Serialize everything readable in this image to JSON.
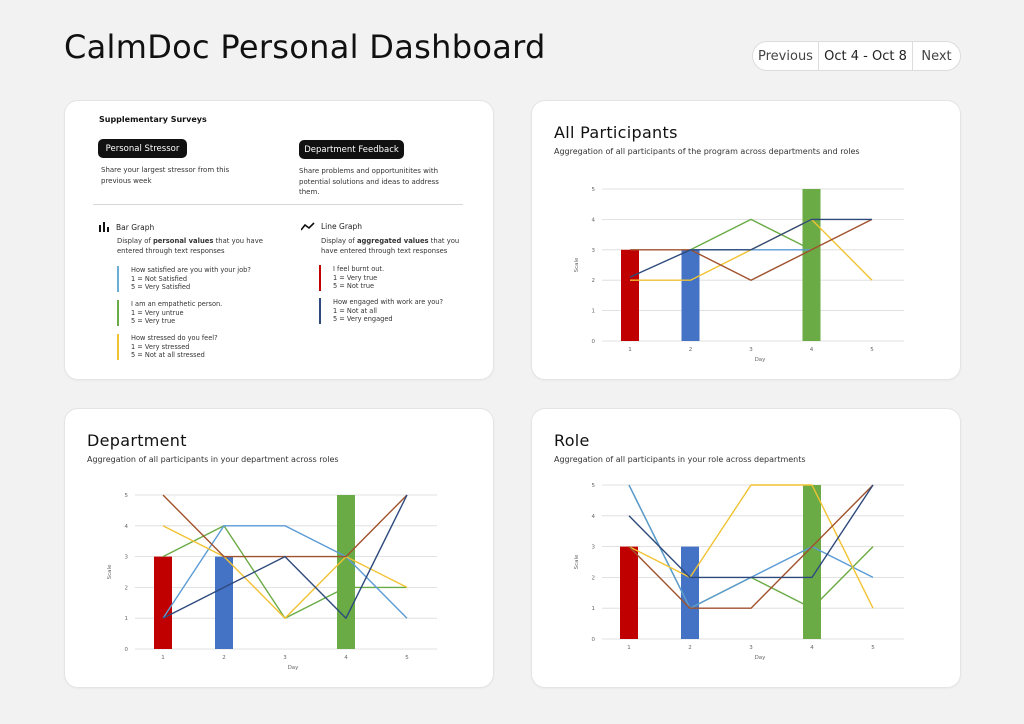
{
  "header": {
    "title": "CalmDoc Personal Dashboard",
    "pager": {
      "prev": "Previous",
      "range": "Oct 4 - Oct 8",
      "next": "Next"
    }
  },
  "surveys": {
    "heading": "Supplementary Surveys",
    "stressor": {
      "label": "Personal Stressor",
      "desc": "Share your largest stressor from this previous week"
    },
    "feedback": {
      "label": "Department Feedback",
      "desc": "Share problems and opportunitites with potential solutions and ideas to address them."
    },
    "bar_legend": {
      "title": "Bar Graph",
      "desc_pre": "Display of ",
      "desc_bold": "personal values",
      "desc_post": " that you have entered through text responses",
      "items": [
        {
          "q": "How satisfied are you with your job?",
          "l1": "1 = Not Satisfied",
          "l2": "5 = Very Satisfied",
          "color": "#6aaed6"
        },
        {
          "q": "I am an empathetic person.",
          "l1": "1 = Very untrue",
          "l2": "5 = Very true",
          "color": "#6aab45"
        },
        {
          "q": "How stressed do you feel?",
          "l1": "1 = Very stressed",
          "l2": "5 = Not at all stressed",
          "color": "#f1c232"
        }
      ]
    },
    "line_legend": {
      "title": "Line Graph",
      "desc_pre": "Display of ",
      "desc_bold": "aggregated values",
      "desc_post": " that you have entered through text responses",
      "items": [
        {
          "q": "I feel burnt out.",
          "l1": "1 = Very true",
          "l2": "5 = Not true",
          "color": "#c00000"
        },
        {
          "q": "How engaged with work are you?",
          "l1": "1 = Not at all",
          "l2": "5 = Very engaged",
          "color": "#2e4a7d"
        }
      ]
    }
  },
  "chart_data": [
    {
      "id": "all",
      "title": "All Participants",
      "subtitle": "Aggregation of all participants of the program across departments and roles",
      "type": "bar+line",
      "categories": [
        1,
        2,
        3,
        4,
        5
      ],
      "xlabel": "Day",
      "ylabel": "Scale",
      "ylim": [
        0,
        5
      ],
      "grid": true,
      "bars": [
        {
          "day": 1,
          "value": 3,
          "color": "#c00000"
        },
        {
          "day": 2,
          "value": 3,
          "color": "#4472c4"
        },
        {
          "day": 4,
          "value": 5,
          "color": "#6aab45"
        }
      ],
      "series": [
        {
          "color": "#6aab45",
          "values": [
            null,
            3,
            4,
            3,
            null
          ]
        },
        {
          "color": "#5b9bd5",
          "values": [
            null,
            3,
            3,
            3,
            null
          ]
        },
        {
          "color": "#f1c232",
          "values": [
            2,
            2,
            3,
            4,
            2
          ]
        },
        {
          "color": "#a0522d",
          "values": [
            3,
            3,
            2,
            3,
            4
          ]
        },
        {
          "color": "#2e4a7d",
          "values": [
            2.1,
            3,
            3,
            4,
            4
          ]
        }
      ]
    },
    {
      "id": "dept",
      "title": "Department",
      "subtitle": "Aggregation of all participants in your department across roles",
      "type": "bar+line",
      "categories": [
        1,
        2,
        3,
        4,
        5
      ],
      "xlabel": "Day",
      "ylabel": "Scale",
      "ylim": [
        0,
        5
      ],
      "grid": true,
      "bars": [
        {
          "day": 1,
          "value": 3,
          "color": "#c00000"
        },
        {
          "day": 2,
          "value": 3,
          "color": "#4472c4"
        },
        {
          "day": 4,
          "value": 5,
          "color": "#6aab45"
        }
      ],
      "series": [
        {
          "color": "#6aab45",
          "values": [
            3,
            4,
            1,
            2,
            2
          ]
        },
        {
          "color": "#5b9bd5",
          "values": [
            1,
            4,
            4,
            3,
            1
          ]
        },
        {
          "color": "#f1c232",
          "values": [
            4,
            3,
            1,
            3,
            2
          ]
        },
        {
          "color": "#a0522d",
          "values": [
            5,
            3,
            3,
            3,
            5
          ]
        },
        {
          "color": "#2e4a7d",
          "values": [
            1,
            2,
            3,
            1,
            5
          ]
        }
      ]
    },
    {
      "id": "role",
      "title": "Role",
      "subtitle": "Aggregation of all participants in your role across departments",
      "type": "bar+line",
      "categories": [
        1,
        2,
        3,
        4,
        5
      ],
      "xlabel": "Day",
      "ylabel": "Scale",
      "ylim": [
        0,
        5
      ],
      "grid": true,
      "bars": [
        {
          "day": 1,
          "value": 3,
          "color": "#c00000"
        },
        {
          "day": 2,
          "value": 3,
          "color": "#4472c4"
        },
        {
          "day": 4,
          "value": 5,
          "color": "#6aab45"
        }
      ],
      "series": [
        {
          "color": "#6aab45",
          "values": [
            5,
            1,
            2,
            1,
            3
          ]
        },
        {
          "color": "#5b9bd5",
          "values": [
            5,
            1,
            2,
            3,
            2
          ]
        },
        {
          "color": "#f1c232",
          "values": [
            3,
            2,
            5,
            5,
            1
          ]
        },
        {
          "color": "#a0522d",
          "values": [
            3,
            1,
            1,
            3,
            5
          ]
        },
        {
          "color": "#2e4a7d",
          "values": [
            4,
            2,
            2,
            2,
            5
          ]
        }
      ]
    }
  ]
}
